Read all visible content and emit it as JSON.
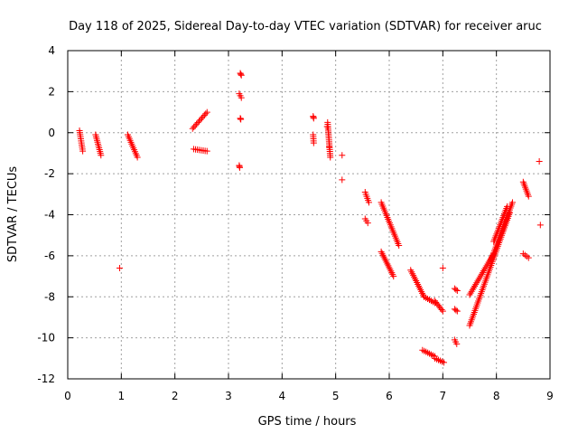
{
  "chart_data": {
    "type": "scatter",
    "title": "Day 118 of 2025, Sidereal Day-to-day VTEC variation (SDTVAR) for receiver aruc",
    "xlabel": "GPS time / hours",
    "ylabel": "SDTVAR / TECUs",
    "xlim": [
      0,
      9
    ],
    "ylim": [
      -12,
      4
    ],
    "xticks": [
      0,
      1,
      2,
      3,
      4,
      5,
      6,
      7,
      8,
      9
    ],
    "yticks": [
      -12,
      -10,
      -8,
      -6,
      -4,
      -2,
      0,
      2,
      4
    ],
    "grid": true,
    "marker": "+",
    "color": "#ff0000",
    "series": [
      {
        "name": "SDTVAR",
        "segments": [
          [
            [
              0.22,
              0.1
            ],
            [
              0.28,
              -0.9
            ]
          ],
          [
            [
              0.52,
              -0.1
            ],
            [
              0.62,
              -1.1
            ]
          ],
          [
            [
              1.12,
              -0.1
            ],
            [
              1.3,
              -1.2
            ]
          ],
          [
            [
              2.33,
              0.2
            ],
            [
              2.6,
              1.0
            ]
          ],
          [
            [
              2.35,
              -0.8
            ],
            [
              2.6,
              -0.9
            ]
          ],
          [
            [
              3.22,
              2.9
            ],
            [
              3.24,
              2.8
            ]
          ],
          [
            [
              3.2,
              1.9
            ],
            [
              3.24,
              1.7
            ]
          ],
          [
            [
              3.22,
              0.7
            ],
            [
              3.23,
              0.65
            ]
          ],
          [
            [
              3.2,
              -1.6
            ],
            [
              3.21,
              -1.7
            ]
          ],
          [
            [
              4.58,
              0.8
            ],
            [
              4.59,
              0.7
            ]
          ],
          [
            [
              4.58,
              -0.1
            ],
            [
              4.59,
              -0.5
            ]
          ],
          [
            [
              4.85,
              0.5
            ],
            [
              4.9,
              -1.2
            ]
          ],
          [
            [
              5.55,
              -2.9
            ],
            [
              5.62,
              -3.4
            ]
          ],
          [
            [
              5.55,
              -4.2
            ],
            [
              5.6,
              -4.4
            ]
          ],
          [
            [
              5.85,
              -3.4
            ],
            [
              6.18,
              -5.5
            ]
          ],
          [
            [
              5.85,
              -5.8
            ],
            [
              6.08,
              -7.0
            ]
          ],
          [
            [
              6.4,
              -6.7
            ],
            [
              6.65,
              -8.0
            ]
          ],
          [
            [
              6.65,
              -8.0
            ],
            [
              6.85,
              -8.3
            ]
          ],
          [
            [
              6.85,
              -8.2
            ],
            [
              7.0,
              -8.7
            ]
          ],
          [
            [
              6.62,
              -10.6
            ],
            [
              6.85,
              -10.9
            ]
          ],
          [
            [
              6.85,
              -11.0
            ],
            [
              7.02,
              -11.2
            ]
          ],
          [
            [
              7.22,
              -7.6
            ],
            [
              7.27,
              -7.7
            ]
          ],
          [
            [
              7.22,
              -8.6
            ],
            [
              7.27,
              -8.7
            ]
          ],
          [
            [
              7.22,
              -10.1
            ],
            [
              7.26,
              -10.3
            ]
          ],
          [
            [
              7.5,
              -7.9
            ],
            [
              7.95,
              -5.9
            ]
          ],
          [
            [
              7.5,
              -9.4
            ],
            [
              8.25,
              -3.9
            ]
          ],
          [
            [
              7.9,
              -6.2
            ],
            [
              8.3,
              -3.4
            ]
          ],
          [
            [
              7.95,
              -5.3
            ],
            [
              8.2,
              -3.6
            ]
          ],
          [
            [
              8.5,
              -2.4
            ],
            [
              8.6,
              -3.1
            ]
          ],
          [
            [
              8.5,
              -5.9
            ],
            [
              8.6,
              -6.1
            ]
          ]
        ],
        "points": [
          [
            0.97,
            -6.6
          ],
          [
            4.84,
            0.3
          ],
          [
            4.88,
            -0.7
          ],
          [
            5.12,
            -1.1
          ],
          [
            5.12,
            -2.3
          ],
          [
            7.0,
            -6.6
          ],
          [
            8.8,
            -1.4
          ],
          [
            8.82,
            -4.5
          ]
        ]
      }
    ]
  }
}
